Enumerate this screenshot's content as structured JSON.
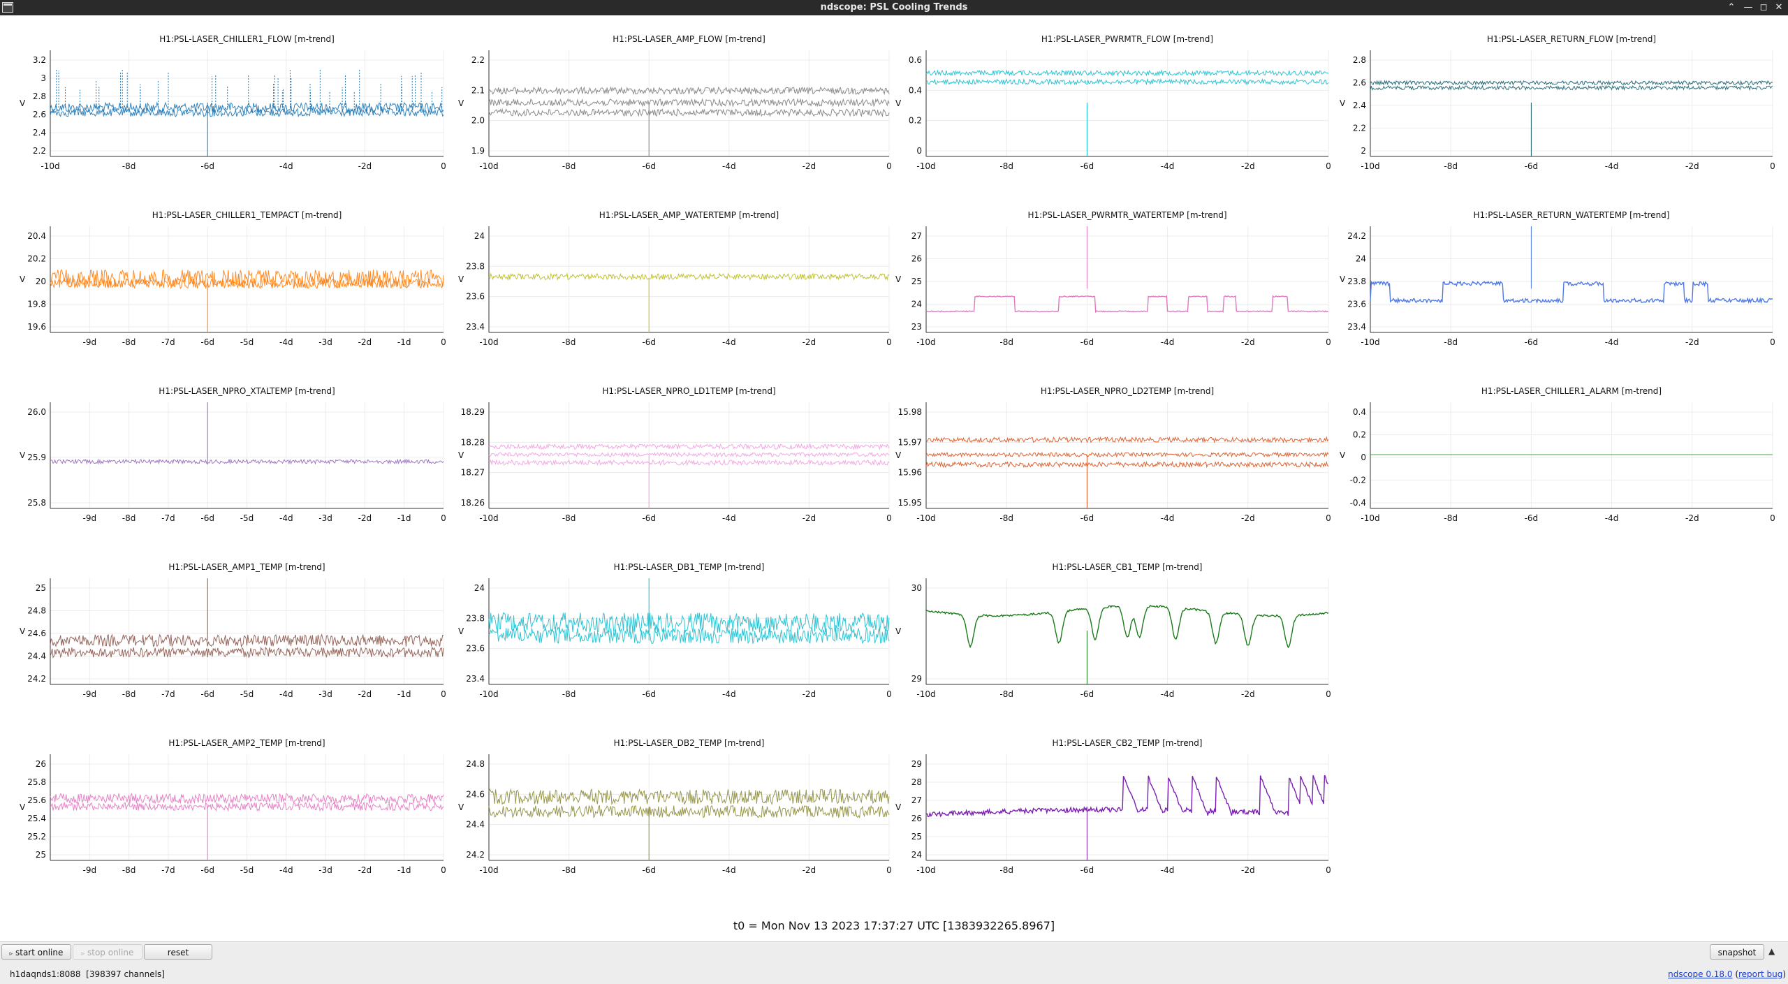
{
  "window": {
    "title": "ndscope: PSL Cooling Trends"
  },
  "colors": {
    "CHILLER1_FLOW": "#1f77b4",
    "AMP_FLOW": "#7f7f7f",
    "PWRMTR_FLOW": "#17becf",
    "RETURN_FLOW": "#17606f",
    "CHILLER1_TEMPACT": "#ff7f0e",
    "AMP_WATERTEMP": "#bcbd22",
    "PWRMTR_WATERTEMP": "#e377c2",
    "RETURN_WATERTEMP": "#4e79e7",
    "NPRO_XTALTEMP": "#9467bd",
    "NPRO_LD1TEMP": "#f0a0e0",
    "NPRO_LD2TEMP": "#d9531e",
    "CHILLER1_ALARM": "#2ca02c",
    "AMP1_TEMP": "#8c564b",
    "DB1_TEMP": "#17becf",
    "CB1_TEMP": "#1b7a1b",
    "AMP2_TEMP": "#e377c2",
    "DB2_TEMP": "#8c8c3a",
    "CB2_TEMP": "#7a1fb0"
  },
  "ylabel": "V",
  "plots": [
    {
      "title": "H1:PSL-LASER_CHILLER1_FLOW [m-trend]",
      "yticks": [
        "2.2",
        "2.4",
        "2.6",
        "2.8",
        "3",
        "3.2"
      ],
      "xticks": [
        "-10d",
        "-8d",
        "-6d",
        "-4d",
        "-2d",
        "0"
      ]
    },
    {
      "title": "H1:PSL-LASER_AMP_FLOW [m-trend]",
      "yticks": [
        "1.9",
        "2.0",
        "2.1",
        "2.2"
      ],
      "xticks": [
        "-10d",
        "-8d",
        "-6d",
        "-4d",
        "-2d",
        "0"
      ]
    },
    {
      "title": "H1:PSL-LASER_PWRMTR_FLOW [m-trend]",
      "yticks": [
        "0",
        "0.2",
        "0.4",
        "0.6"
      ],
      "xticks": [
        "-10d",
        "-8d",
        "-6d",
        "-4d",
        "-2d",
        "0"
      ]
    },
    {
      "title": "H1:PSL-LASER_RETURN_FLOW [m-trend]",
      "yticks": [
        "2",
        "2.2",
        "2.4",
        "2.6",
        "2.8"
      ],
      "xticks": [
        "-10d",
        "-8d",
        "-6d",
        "-4d",
        "-2d",
        "0"
      ]
    },
    {
      "title": "H1:PSL-LASER_CHILLER1_TEMPACT [m-trend]",
      "yticks": [
        "19.6",
        "19.8",
        "20",
        "20.2",
        "20.4"
      ],
      "xticks": [
        "-9d",
        "-8d",
        "-7d",
        "-6d",
        "-5d",
        "-4d",
        "-3d",
        "-2d",
        "-1d",
        "0"
      ]
    },
    {
      "title": "H1:PSL-LASER_AMP_WATERTEMP [m-trend]",
      "yticks": [
        "23.4",
        "23.6",
        "23.8",
        "24"
      ],
      "xticks": [
        "-10d",
        "-8d",
        "-6d",
        "-4d",
        "-2d",
        "0"
      ]
    },
    {
      "title": "H1:PSL-LASER_PWRMTR_WATERTEMP [m-trend]",
      "yticks": [
        "23",
        "24",
        "25",
        "26",
        "27"
      ],
      "xticks": [
        "-10d",
        "-8d",
        "-6d",
        "-4d",
        "-2d",
        "0"
      ]
    },
    {
      "title": "H1:PSL-LASER_RETURN_WATERTEMP [m-trend]",
      "yticks": [
        "23.4",
        "23.6",
        "23.8",
        "24",
        "24.2"
      ],
      "xticks": [
        "-10d",
        "-8d",
        "-6d",
        "-4d",
        "-2d",
        "0"
      ]
    },
    {
      "title": "H1:PSL-LASER_NPRO_XTALTEMP [m-trend]",
      "yticks": [
        "25.8",
        "25.9",
        "26.0"
      ],
      "xticks": [
        "-9d",
        "-8d",
        "-7d",
        "-6d",
        "-5d",
        "-4d",
        "-3d",
        "-2d",
        "-1d",
        "0"
      ]
    },
    {
      "title": "H1:PSL-LASER_NPRO_LD1TEMP [m-trend]",
      "yticks": [
        "18.26",
        "18.27",
        "18.28",
        "18.29"
      ],
      "xticks": [
        "-10d",
        "-8d",
        "-6d",
        "-4d",
        "-2d",
        "0"
      ]
    },
    {
      "title": "H1:PSL-LASER_NPRO_LD2TEMP [m-trend]",
      "yticks": [
        "15.95",
        "15.96",
        "15.97",
        "15.98"
      ],
      "xticks": [
        "-10d",
        "-8d",
        "-6d",
        "-4d",
        "-2d",
        "0"
      ]
    },
    {
      "title": "H1:PSL-LASER_CHILLER1_ALARM [m-trend]",
      "yticks": [
        "-0.4",
        "-0.2",
        "0",
        "0.2",
        "0.4"
      ],
      "xticks": [
        "-10d",
        "-8d",
        "-6d",
        "-4d",
        "-2d",
        "0"
      ]
    },
    {
      "title": "H1:PSL-LASER_AMP1_TEMP [m-trend]",
      "yticks": [
        "24.2",
        "24.4",
        "24.6",
        "24.8",
        "25"
      ],
      "xticks": [
        "-9d",
        "-8d",
        "-7d",
        "-6d",
        "-5d",
        "-4d",
        "-3d",
        "-2d",
        "-1d",
        "0"
      ]
    },
    {
      "title": "H1:PSL-LASER_DB1_TEMP [m-trend]",
      "yticks": [
        "23.4",
        "23.6",
        "23.8",
        "24"
      ],
      "xticks": [
        "-10d",
        "-8d",
        "-6d",
        "-4d",
        "-2d",
        "0"
      ]
    },
    {
      "title": "H1:PSL-LASER_CB1_TEMP [m-trend]",
      "yticks": [
        "29",
        "30"
      ],
      "xticks": [
        "-10d",
        "-8d",
        "-6d",
        "-4d",
        "-2d",
        "0"
      ]
    },
    {
      "title": "H1:PSL-LASER_AMP2_TEMP [m-trend]",
      "yticks": [
        "25",
        "25.2",
        "25.4",
        "25.6",
        "25.8",
        "26"
      ],
      "xticks": [
        "-9d",
        "-8d",
        "-7d",
        "-6d",
        "-5d",
        "-4d",
        "-3d",
        "-2d",
        "-1d",
        "0"
      ]
    },
    {
      "title": "H1:PSL-LASER_DB2_TEMP [m-trend]",
      "yticks": [
        "24.2",
        "24.4",
        "24.6",
        "24.8"
      ],
      "xticks": [
        "-10d",
        "-8d",
        "-6d",
        "-4d",
        "-2d",
        "0"
      ]
    },
    {
      "title": "H1:PSL-LASER_CB2_TEMP [m-trend]",
      "yticks": [
        "24",
        "25",
        "26",
        "27",
        "28",
        "29"
      ],
      "xticks": [
        "-10d",
        "-8d",
        "-6d",
        "-4d",
        "-2d",
        "0"
      ]
    }
  ],
  "t0_label": "t0 = Mon Nov 13 2023 17:37:27 UTC [1383932265.8967]",
  "toolbar": {
    "start_online": "start online",
    "stop_online": "stop online",
    "reset": "reset",
    "snapshot": "snapshot"
  },
  "status": {
    "server": "h1daqnds1:8088",
    "channels": "[398397 channels]",
    "version": "ndscope 0.18.0",
    "report_bug": "report bug"
  }
}
